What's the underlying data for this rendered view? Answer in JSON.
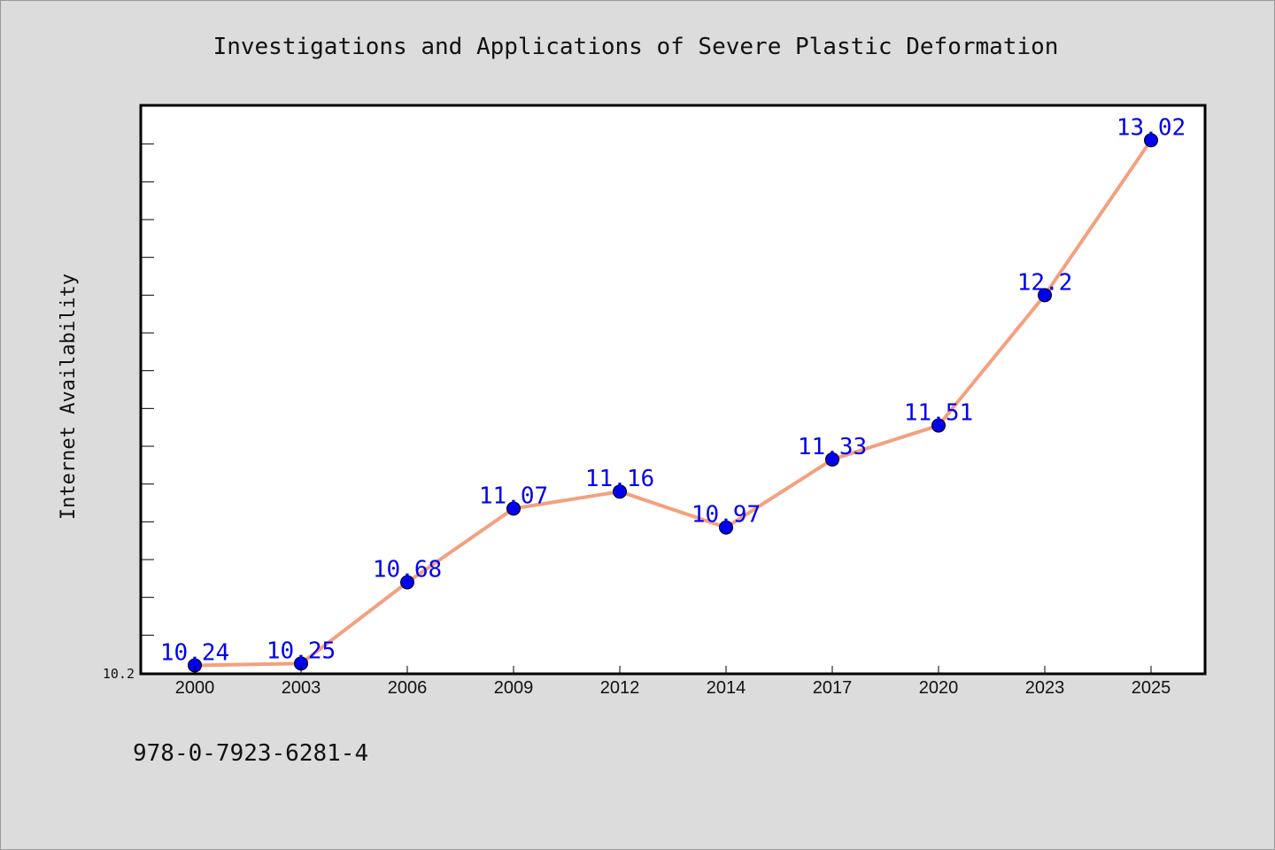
{
  "chart_data": {
    "type": "line",
    "title": "Investigations and Applications of Severe Plastic Deformation",
    "xlabel": "",
    "ylabel": "Internet Availability",
    "categories": [
      "2000",
      "2003",
      "2006",
      "2009",
      "2012",
      "2014",
      "2017",
      "2020",
      "2023",
      "2025"
    ],
    "values": [
      10.24,
      10.25,
      10.68,
      11.07,
      11.16,
      10.97,
      11.33,
      11.51,
      12.2,
      13.02
    ],
    "data_labels": [
      "10.24",
      "10.25",
      "10.68",
      "11.07",
      "11.16",
      "10.97",
      "11.33",
      "11.51",
      "12.2",
      "13.02"
    ],
    "ylim": [
      10.2,
      13.2
    ],
    "y_tick_labels": [
      "10.2"
    ],
    "grid": false,
    "legend": "none",
    "colors": {
      "line": "#f4a07f",
      "marker": "#0000ee",
      "label": "#0000ee",
      "plot_background": "#ffffff",
      "page_background": "#dcdcdc"
    }
  },
  "footer": {
    "isbn": "978-0-7923-6281-4"
  }
}
